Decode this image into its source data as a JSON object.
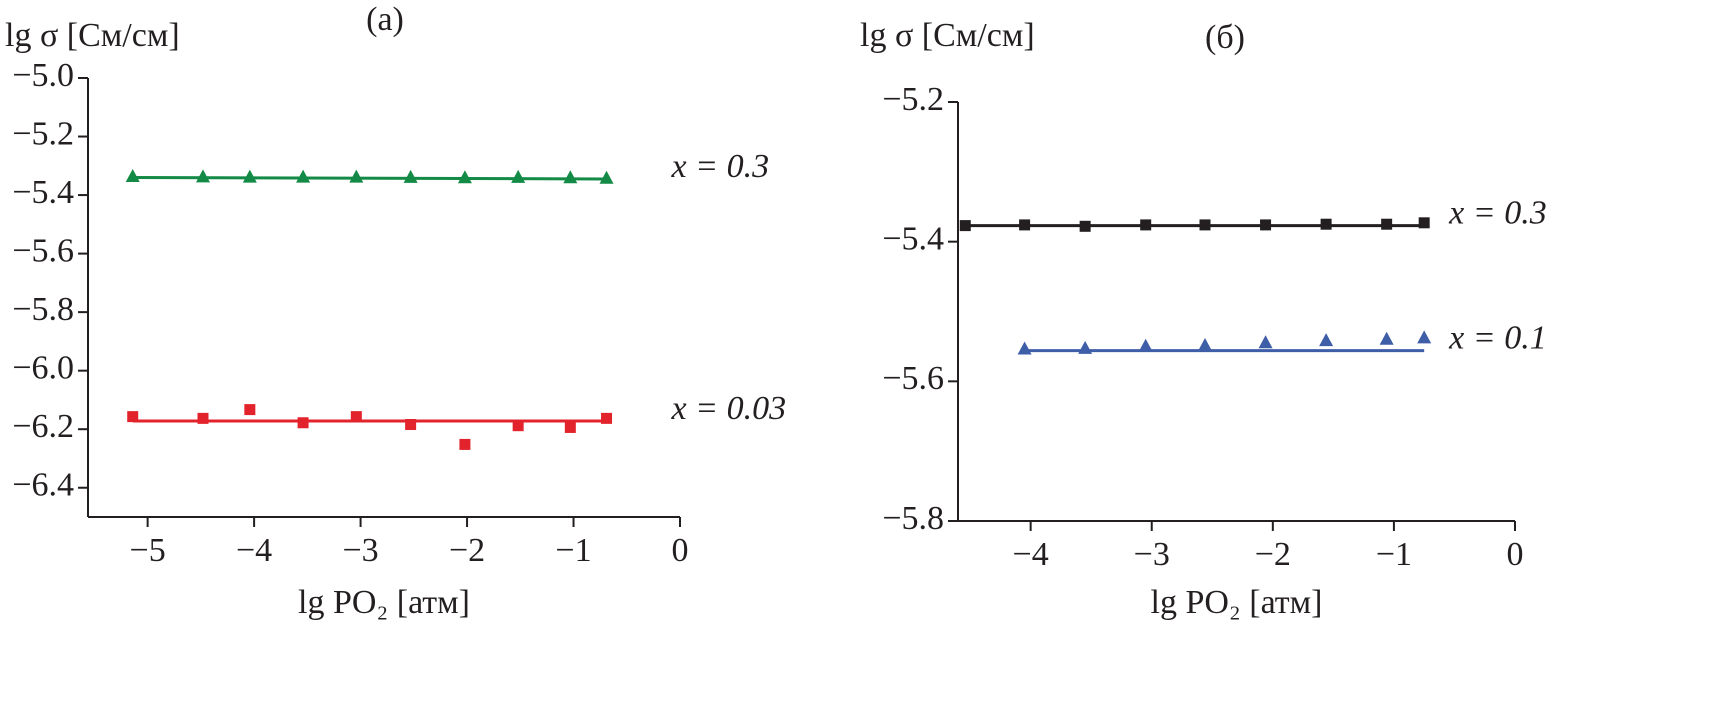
{
  "chart_data": [
    {
      "type": "scatter",
      "title": "(а)",
      "y_label": "lg σ [См/см]",
      "x_label": "lg PO₂ [атм]",
      "xlim": [
        -5.56,
        0
      ],
      "ylim": [
        -6.5,
        -5.0
      ],
      "xticks": [
        {
          "value": -5,
          "label": "−5"
        },
        {
          "value": -4,
          "label": "−4"
        },
        {
          "value": -3,
          "label": "−3"
        },
        {
          "value": -2,
          "label": "−2"
        },
        {
          "value": -1,
          "label": "−1"
        },
        0
      ],
      "yticks": [
        {
          "value": -5.0,
          "label": "−5.0"
        },
        {
          "value": -5.2,
          "label": "−5.2"
        },
        {
          "value": -5.4,
          "label": "−5.4"
        },
        {
          "value": -5.6,
          "label": "−5.6"
        },
        {
          "value": -5.8,
          "label": "−5.8"
        },
        {
          "value": -6.0,
          "label": "−6.0"
        },
        {
          "value": -6.2,
          "label": "−6.2"
        },
        {
          "value": -6.4,
          "label": "−6.4"
        }
      ],
      "series": [
        {
          "name": "x = 0.3",
          "color": "#138a45",
          "marker": "triangle",
          "x": [
            -5.14,
            -4.48,
            -4.04,
            -3.54,
            -3.04,
            -2.53,
            -2.02,
            -1.52,
            -1.03,
            -0.69
          ],
          "values": [
            -5.335,
            -5.336,
            -5.337,
            -5.337,
            -5.337,
            -5.338,
            -5.339,
            -5.338,
            -5.339,
            -5.341
          ],
          "fit": {
            "x": [
              -5.14,
              -0.69
            ],
            "y": [
              -5.34,
              -5.345
            ]
          }
        },
        {
          "name": "x = 0.03",
          "color": "#e3232b",
          "marker": "square",
          "x": [
            -5.14,
            -4.48,
            -4.04,
            -3.54,
            -3.04,
            -2.53,
            -2.02,
            -1.52,
            -1.03,
            -0.69
          ],
          "values": [
            -6.157,
            -6.163,
            -6.133,
            -6.178,
            -6.157,
            -6.184,
            -6.252,
            -6.188,
            -6.194,
            -6.163
          ],
          "fit": {
            "x": [
              -5.14,
              -0.69
            ],
            "y": [
              -6.172,
              -6.172
            ]
          }
        }
      ]
    },
    {
      "type": "scatter",
      "title": "(б)",
      "y_label": "lg σ [См/см]",
      "x_label": "lg PO₂ [атм]",
      "xlim": [
        -4.6,
        0
      ],
      "ylim": [
        -5.8,
        -5.2
      ],
      "xticks": [
        {
          "value": -4,
          "label": "−4"
        },
        {
          "value": -3,
          "label": "−3"
        },
        {
          "value": -2,
          "label": "−2"
        },
        {
          "value": -1,
          "label": "−1"
        },
        0
      ],
      "yticks": [
        {
          "value": -5.2,
          "label": "−5.2"
        },
        {
          "value": -5.4,
          "label": "−5.4"
        },
        {
          "value": -5.6,
          "label": "−5.6"
        },
        {
          "value": -5.8,
          "label": "−5.8"
        }
      ],
      "series": [
        {
          "name": "x = 0.3",
          "color": "#231f20",
          "marker": "square",
          "x": [
            -4.54,
            -4.05,
            -3.55,
            -3.05,
            -2.56,
            -2.06,
            -1.56,
            -1.06,
            -0.75
          ],
          "values": [
            -5.377,
            -5.376,
            -5.378,
            -5.376,
            -5.376,
            -5.376,
            -5.375,
            -5.375,
            -5.373
          ],
          "fit": {
            "x": [
              -4.54,
              -0.75
            ],
            "y": [
              -5.377,
              -5.377
            ]
          }
        },
        {
          "name": "x = 0.1",
          "color": "#3f5ea8",
          "marker": "triangle",
          "x": [
            -4.05,
            -3.55,
            -3.05,
            -2.56,
            -2.06,
            -1.56,
            -1.06,
            -0.75
          ],
          "values": [
            -5.553,
            -5.552,
            -5.549,
            -5.548,
            -5.544,
            -5.541,
            -5.539,
            -5.537
          ],
          "fit": {
            "x": [
              -4.05,
              -0.75
            ],
            "y": [
              -5.556,
              -5.556
            ]
          }
        }
      ]
    }
  ]
}
